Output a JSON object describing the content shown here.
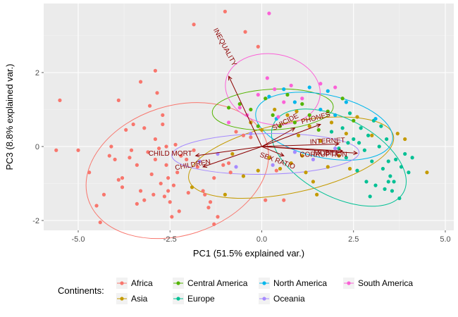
{
  "chart_data": {
    "type": "scatter",
    "subtype": "pca-biplot",
    "xlabel": "PC1 (51.5% explained var.)",
    "ylabel": "PC3 (8.8% explained var.)",
    "xlim": [
      -6.2,
      5.0
    ],
    "ylim": [
      -2.3,
      3.9
    ],
    "x_ticks": [
      -5.0,
      -2.5,
      0.0,
      2.5,
      5.0
    ],
    "x_tick_labels": [
      "-5.0",
      "-2.5",
      "0.0",
      "2.5",
      "5.0"
    ],
    "y_ticks": [
      -2,
      0,
      2
    ],
    "y_tick_labels": [
      "-2",
      "0",
      "2"
    ],
    "grid": true,
    "background": "#ebebeb",
    "legend": {
      "title": "Continents:",
      "position": "bottom",
      "entries": [
        "Africa",
        "Asia",
        "Central America",
        "Europe",
        "North America",
        "Oceania",
        "South America"
      ]
    },
    "colors": {
      "Africa": "#f8766d",
      "Asia": "#c49a00",
      "Central America": "#53b400",
      "Europe": "#00c094",
      "North America": "#00b6eb",
      "Oceania": "#a58aff",
      "South America": "#fb61d7",
      "arrows": "#8b0000"
    },
    "loadings": [
      {
        "label": "INEQUALITY",
        "x": -0.9,
        "y": 1.9
      },
      {
        "label": "SUICIDE",
        "x": 0.9,
        "y": 0.5
      },
      {
        "label": "PHONES",
        "x": 1.6,
        "y": 0.6
      },
      {
        "label": "INTERNET",
        "x": 2.1,
        "y": 0.07
      },
      {
        "label": "MOBILE",
        "x": 2.2,
        "y": -0.12
      },
      {
        "label": "CORRUPTION",
        "x": 2.6,
        "y": -0.18
      },
      {
        "label": "SEX RATIO",
        "x": 0.6,
        "y": -0.25
      },
      {
        "label": "CHILD MORT",
        "x": -1.8,
        "y": -0.25
      },
      {
        "label": "CHILDREN",
        "x": -1.6,
        "y": -0.55
      }
    ],
    "ellipses": [
      {
        "group": "Africa",
        "cx": -2.3,
        "cy": -0.65,
        "rx": 2.55,
        "ry": 1.75,
        "angle": 18
      },
      {
        "group": "Asia",
        "cx": 0.8,
        "cy": -0.3,
        "rx": 2.85,
        "ry": 0.95,
        "angle": 12
      },
      {
        "group": "Central America",
        "cx": 0.3,
        "cy": 1.0,
        "rx": 1.65,
        "ry": 0.55,
        "angle": 3
      },
      {
        "group": "Europe",
        "cx": 2.1,
        "cy": -0.3,
        "rx": 2.0,
        "ry": 1.05,
        "angle": -28
      },
      {
        "group": "North America",
        "cx": 1.7,
        "cy": 0.55,
        "rx": 1.9,
        "ry": 0.85,
        "angle": -12
      },
      {
        "group": "Oceania",
        "cx": 0.1,
        "cy": -0.2,
        "rx": 2.55,
        "ry": 0.55,
        "angle": 1
      },
      {
        "group": "South America",
        "cx": 0.3,
        "cy": 1.55,
        "rx": 1.3,
        "ry": 0.95,
        "angle": -10
      }
    ],
    "series": [
      {
        "name": "Africa",
        "points": [
          [
            -5.6,
            -0.1
          ],
          [
            -5.5,
            1.25
          ],
          [
            -5.0,
            -0.1
          ],
          [
            -4.7,
            -0.7
          ],
          [
            -4.5,
            -1.6
          ],
          [
            -4.4,
            -2.05
          ],
          [
            -4.3,
            -1.3
          ],
          [
            -4.1,
            0.0
          ],
          [
            -4.0,
            -0.35
          ],
          [
            -3.9,
            -0.9
          ],
          [
            -3.8,
            -1.1
          ],
          [
            -3.7,
            0.45
          ],
          [
            -3.6,
            -0.3
          ],
          [
            -3.5,
            0.6
          ],
          [
            -3.4,
            -0.5
          ],
          [
            -3.3,
            -1.2
          ],
          [
            -3.2,
            0.5
          ],
          [
            -3.2,
            -1.45
          ],
          [
            -3.1,
            -0.15
          ],
          [
            -3.05,
            1.1
          ],
          [
            -3.0,
            -0.75
          ],
          [
            -2.95,
            -1.3
          ],
          [
            -2.9,
            -0.35
          ],
          [
            -2.9,
            0.2
          ],
          [
            -2.85,
            1.45
          ],
          [
            -2.8,
            -0.05
          ],
          [
            -2.75,
            -1.0
          ],
          [
            -2.7,
            0.6
          ],
          [
            -2.65,
            -1.35
          ],
          [
            -2.6,
            0.0
          ],
          [
            -2.6,
            -0.5
          ],
          [
            -2.55,
            -0.85
          ],
          [
            -2.5,
            -1.5
          ],
          [
            -2.45,
            -1.9
          ],
          [
            -2.4,
            -1.05
          ],
          [
            -2.35,
            0.05
          ],
          [
            -2.3,
            -0.7
          ],
          [
            -2.2,
            -0.25
          ],
          [
            -2.05,
            -0.35
          ],
          [
            -2.0,
            -1.25
          ],
          [
            -1.85,
            -0.1
          ],
          [
            -1.75,
            -0.55
          ],
          [
            -1.6,
            -1.2
          ],
          [
            -1.55,
            -1.3
          ],
          [
            -1.45,
            -1.65
          ],
          [
            -1.4,
            -1.5
          ],
          [
            -1.3,
            -0.85
          ],
          [
            -1.2,
            -1.9
          ],
          [
            -1.05,
            -0.5
          ],
          [
            -0.9,
            -0.45
          ],
          [
            -0.7,
            0.4
          ],
          [
            -0.5,
            0.3
          ],
          [
            -0.3,
            0.25
          ],
          [
            0.1,
            -1.45
          ],
          [
            0.4,
            -0.65
          ],
          [
            0.6,
            -1.45
          ],
          [
            -0.85,
            -0.7
          ],
          [
            -1.3,
            -2.1
          ],
          [
            -2.25,
            -1.75
          ],
          [
            -3.4,
            -1.55
          ],
          [
            -3.8,
            -0.85
          ],
          [
            -2.7,
            0.85
          ],
          [
            -3.9,
            1.25
          ],
          [
            -2.55,
            -1.2
          ],
          [
            -4.15,
            -0.25
          ],
          [
            -3.55,
            -0.1
          ]
        ]
      },
      {
        "name": "Asia",
        "points": [
          [
            -1.9,
            -1.1
          ],
          [
            -1.0,
            -1.3
          ],
          [
            -0.5,
            -0.8
          ],
          [
            -0.1,
            -0.65
          ],
          [
            0.2,
            -0.3
          ],
          [
            0.5,
            -0.6
          ],
          [
            0.7,
            0.85
          ],
          [
            0.8,
            -0.45
          ],
          [
            1.0,
            0.3
          ],
          [
            1.1,
            -0.25
          ],
          [
            1.2,
            -0.7
          ],
          [
            1.3,
            0.55
          ],
          [
            1.4,
            -0.95
          ],
          [
            1.5,
            -1.3
          ],
          [
            1.6,
            0.15
          ],
          [
            1.8,
            -0.55
          ],
          [
            1.9,
            0.65
          ],
          [
            2.1,
            -0.25
          ],
          [
            2.3,
            0.35
          ],
          [
            2.4,
            -0.6
          ],
          [
            2.6,
            0.8
          ],
          [
            3.0,
            0.3
          ],
          [
            3.7,
            0.35
          ],
          [
            3.9,
            0.2
          ],
          [
            4.5,
            -0.7
          ],
          [
            0.0,
            0.45
          ],
          [
            -0.3,
            0.65
          ],
          [
            0.35,
            1.0
          ],
          [
            0.95,
            0.95
          ],
          [
            -0.8,
            -0.2
          ]
        ]
      },
      {
        "name": "Central America",
        "points": [
          [
            -0.9,
            1.05
          ],
          [
            -0.6,
            1.15
          ],
          [
            -0.3,
            1.0
          ],
          [
            -0.1,
            0.55
          ],
          [
            0.1,
            1.3
          ],
          [
            0.3,
            0.85
          ],
          [
            0.5,
            0.55
          ],
          [
            0.7,
            1.4
          ],
          [
            0.9,
            0.65
          ],
          [
            1.1,
            1.15
          ],
          [
            1.3,
            0.85
          ],
          [
            1.55,
            0.45
          ],
          [
            1.8,
            0.95
          ],
          [
            2.2,
            1.3
          ],
          [
            2.5,
            0.7
          ]
        ]
      },
      {
        "name": "Europe",
        "points": [
          [
            1.9,
            0.4
          ],
          [
            2.1,
            -0.05
          ],
          [
            2.2,
            0.5
          ],
          [
            2.3,
            -0.3
          ],
          [
            2.4,
            0.9
          ],
          [
            2.5,
            0.2
          ],
          [
            2.6,
            -0.65
          ],
          [
            2.7,
            0.5
          ],
          [
            2.8,
            -0.1
          ],
          [
            2.85,
            -0.95
          ],
          [
            2.9,
            0.3
          ],
          [
            3.0,
            -0.4
          ],
          [
            3.05,
            0.7
          ],
          [
            3.1,
            -1.05
          ],
          [
            3.2,
            0.0
          ],
          [
            3.3,
            -0.6
          ],
          [
            3.35,
            -1.15
          ],
          [
            3.4,
            0.2
          ],
          [
            3.45,
            -0.4
          ],
          [
            3.5,
            -0.8
          ],
          [
            3.55,
            -1.2
          ],
          [
            3.6,
            -0.95
          ],
          [
            3.65,
            -0.35
          ],
          [
            3.75,
            -1.4
          ],
          [
            3.8,
            -0.55
          ],
          [
            3.9,
            -0.2
          ],
          [
            4.0,
            -0.7
          ],
          [
            4.1,
            -0.3
          ],
          [
            2.95,
            -1.35
          ],
          [
            2.35,
            0.1
          ],
          [
            2.65,
            0.1
          ],
          [
            3.25,
            0.55
          ],
          [
            3.45,
            -0.95
          ]
        ]
      },
      {
        "name": "North America",
        "points": [
          [
            0.2,
            1.35
          ],
          [
            0.4,
            0.75
          ],
          [
            0.6,
            1.55
          ],
          [
            0.9,
            1.2
          ],
          [
            1.3,
            1.6
          ],
          [
            1.6,
            1.0
          ],
          [
            1.8,
            1.5
          ],
          [
            2.0,
            0.85
          ],
          [
            2.3,
            1.2
          ],
          [
            3.1,
            0.75
          ]
        ]
      },
      {
        "name": "Oceania",
        "points": [
          [
            -1.7,
            -0.4
          ],
          [
            -1.2,
            -0.2
          ],
          [
            -0.7,
            -0.55
          ],
          [
            -0.3,
            0.35
          ],
          [
            0.3,
            -0.5
          ],
          [
            0.9,
            -0.15
          ],
          [
            1.4,
            -0.35
          ],
          [
            2.0,
            -0.05
          ]
        ]
      },
      {
        "name": "South America",
        "points": [
          [
            -0.9,
            0.65
          ],
          [
            -0.6,
            1.05
          ],
          [
            -0.4,
            0.85
          ],
          [
            -0.1,
            1.4
          ],
          [
            0.15,
            1.85
          ],
          [
            0.2,
            3.6
          ],
          [
            0.35,
            1.55
          ],
          [
            0.6,
            1.2
          ],
          [
            0.8,
            1.65
          ],
          [
            1.1,
            1.3
          ],
          [
            1.6,
            1.7
          ],
          [
            2.0,
            1.6
          ],
          [
            0.45,
            0.8
          ]
        ]
      }
    ]
  },
  "extra_points": {
    "top_red": [
      [
        -1.85,
        3.3
      ],
      [
        -1.0,
        3.65
      ],
      [
        -0.45,
        3.1
      ],
      [
        -0.1,
        2.7
      ],
      [
        -3.3,
        1.75
      ],
      [
        -2.9,
        2.05
      ]
    ]
  }
}
